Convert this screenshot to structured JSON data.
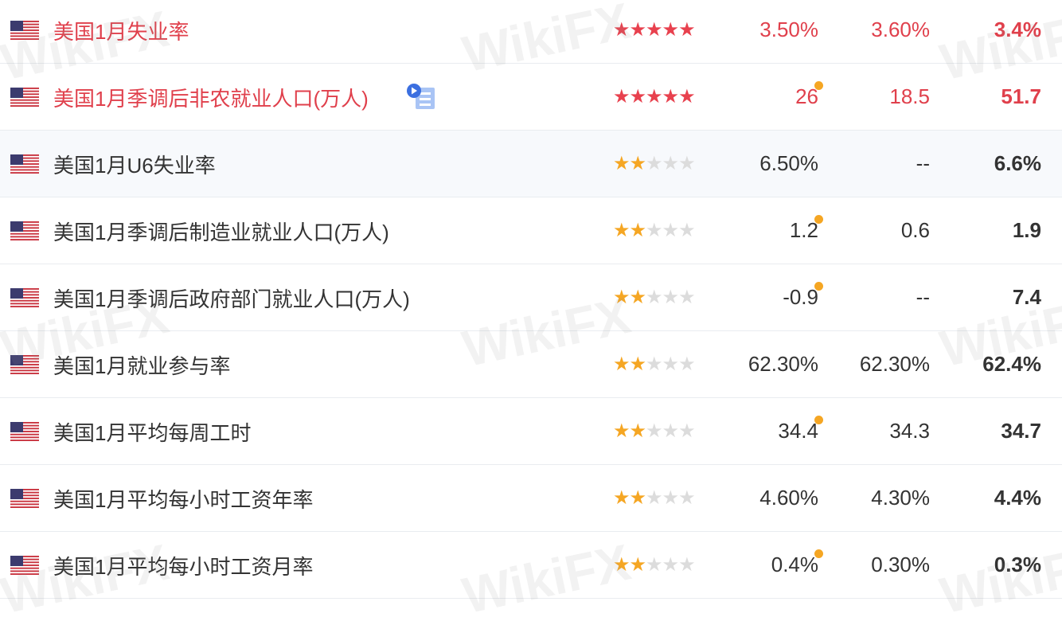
{
  "colors": {
    "highlight": "#e0404c",
    "star_high": "#e8414e",
    "star_normal": "#f5a623",
    "star_off": "#dcdcdc",
    "text": "#333333",
    "updated_dot": "#f5a623"
  },
  "watermark": "WikiFX",
  "rows": [
    {
      "country": "US",
      "name": "美国1月失业率",
      "stars": 5,
      "previous": "3.50%",
      "forecast": "3.60%",
      "actual": "3.4%",
      "highlight": true,
      "dot": false
    },
    {
      "country": "US",
      "name": "美国1月季调后非农就业人口(万人)",
      "stars": 5,
      "previous": "26",
      "forecast": "18.5",
      "actual": "51.7",
      "highlight": true,
      "dot": true,
      "icon": "play-document-icon"
    },
    {
      "country": "US",
      "name": "美国1月U6失业率",
      "stars": 2,
      "previous": "6.50%",
      "forecast": "--",
      "actual": "6.6%",
      "shaded": true,
      "dot": false
    },
    {
      "country": "US",
      "name": "美国1月季调后制造业就业人口(万人)",
      "stars": 2,
      "previous": "1.2",
      "forecast": "0.6",
      "actual": "1.9",
      "dot": true
    },
    {
      "country": "US",
      "name": "美国1月季调后政府部门就业人口(万人)",
      "stars": 2,
      "previous": "-0.9",
      "forecast": "--",
      "actual": "7.4",
      "dot": true
    },
    {
      "country": "US",
      "name": "美国1月就业参与率",
      "stars": 2,
      "previous": "62.30%",
      "forecast": "62.30%",
      "actual": "62.4%",
      "dot": false
    },
    {
      "country": "US",
      "name": "美国1月平均每周工时",
      "stars": 2,
      "previous": "34.4",
      "forecast": "34.3",
      "actual": "34.7",
      "dot": true
    },
    {
      "country": "US",
      "name": "美国1月平均每小时工资年率",
      "stars": 2,
      "previous": "4.60%",
      "forecast": "4.30%",
      "actual": "4.4%",
      "dot": false
    },
    {
      "country": "US",
      "name": "美国1月平均每小时工资月率",
      "stars": 2,
      "previous": "0.4%",
      "forecast": "0.30%",
      "actual": "0.3%",
      "dot": true
    }
  ]
}
